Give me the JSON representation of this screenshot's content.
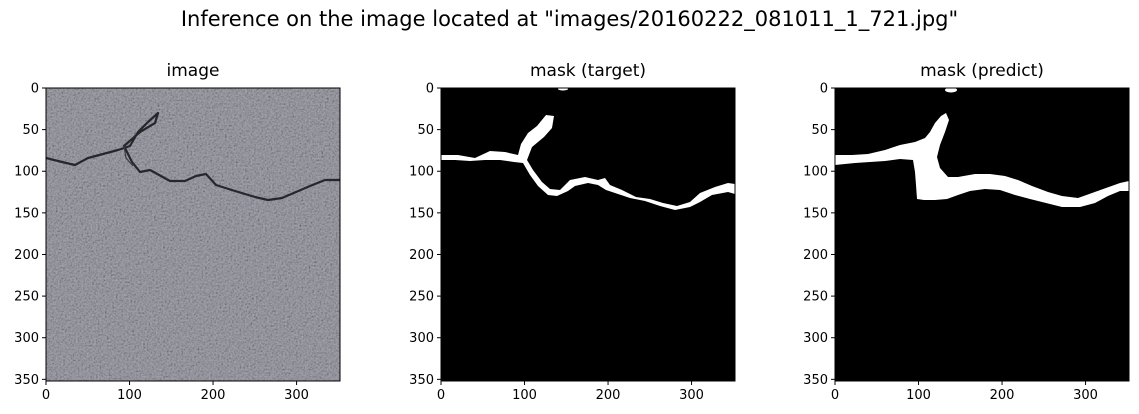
{
  "figure": {
    "suptitle": "Inference on the image located at \"images/20160222_081011_1_721.jpg\""
  },
  "panels": [
    {
      "title": "image"
    },
    {
      "title": "mask (target)"
    },
    {
      "title": "mask (predict)"
    }
  ],
  "axes": {
    "xticks": [
      0,
      100,
      200,
      300
    ],
    "yticks": [
      0,
      50,
      100,
      150,
      200,
      250,
      300,
      350
    ],
    "xlim": [
      0,
      352
    ],
    "ylim": [
      0,
      352
    ]
  },
  "colors": {
    "asphalt": "#8e8e96",
    "crack": "#2a2a30",
    "mask_background": "#000000",
    "mask_foreground": "#ffffff"
  },
  "chart_data": [
    {
      "type": "heatmap",
      "title": "image",
      "x_ticks": [
        "0",
        "100",
        "200",
        "300"
      ],
      "y_ticks": [
        "0",
        "50",
        "100",
        "150",
        "200",
        "250",
        "300",
        "350"
      ],
      "xlim": [
        0,
        352
      ],
      "ylim": [
        352,
        0
      ],
      "content": "asphalt photo with crack",
      "crack_path": [
        [
          0,
          84
        ],
        [
          30,
          90
        ],
        [
          60,
          95
        ],
        [
          90,
          90
        ],
        [
          115,
          78
        ],
        [
          135,
          60
        ],
        [
          140,
          38
        ],
        [
          125,
          70
        ],
        [
          100,
          86
        ],
        [
          118,
          105
        ],
        [
          145,
          125
        ],
        [
          170,
          115
        ],
        [
          195,
          110
        ],
        [
          220,
          120
        ],
        [
          245,
          130
        ],
        [
          270,
          140
        ],
        [
          300,
          130
        ],
        [
          330,
          122
        ],
        [
          352,
          114
        ]
      ]
    },
    {
      "type": "heatmap",
      "title": "mask (target)",
      "x_ticks": [
        "0",
        "100",
        "200",
        "300"
      ],
      "y_ticks": [
        "0",
        "50",
        "100",
        "150",
        "200",
        "250",
        "300",
        "350"
      ],
      "xlim": [
        0,
        352
      ],
      "ylim": [
        352,
        0
      ],
      "content": "binary mask"
    },
    {
      "type": "heatmap",
      "title": "mask (predict)",
      "x_ticks": [
        "0",
        "100",
        "200",
        "300"
      ],
      "y_ticks": [
        "0",
        "50",
        "100",
        "150",
        "200",
        "250",
        "300",
        "350"
      ],
      "xlim": [
        0,
        352
      ],
      "ylim": [
        352,
        0
      ],
      "content": "binary mask"
    }
  ]
}
